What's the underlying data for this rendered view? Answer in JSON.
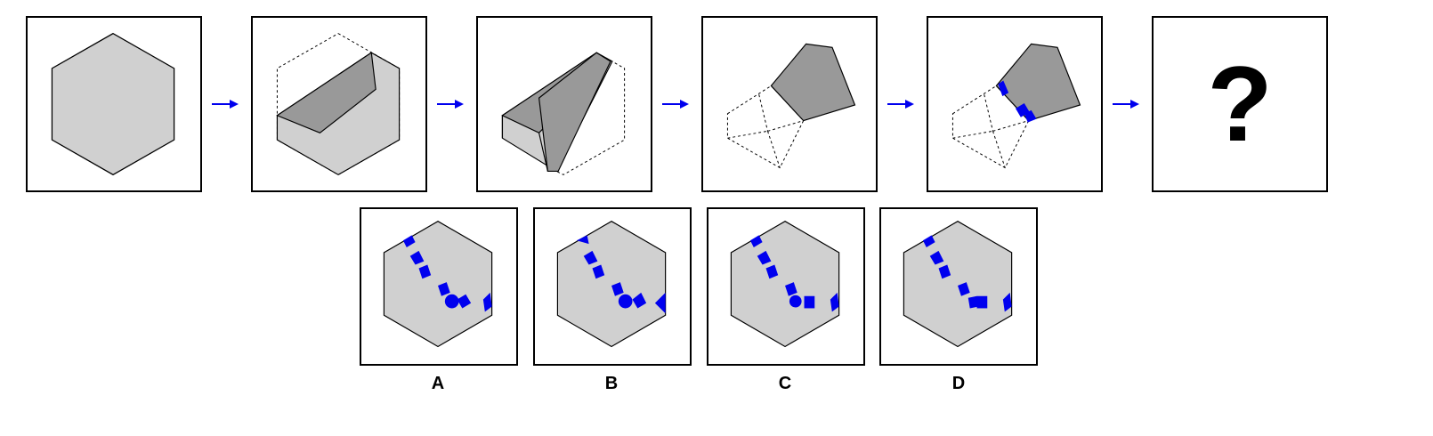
{
  "question_mark": "?",
  "options": [
    {
      "label": "A"
    },
    {
      "label": "B"
    },
    {
      "label": "C"
    },
    {
      "label": "D"
    }
  ],
  "colors": {
    "paper": "#d0d0d0",
    "fold": "#999999",
    "hole": "#0000ee",
    "arrow": "#0000ee",
    "outline": "#000000"
  },
  "icons": {
    "arrow": "right-arrow-icon"
  }
}
